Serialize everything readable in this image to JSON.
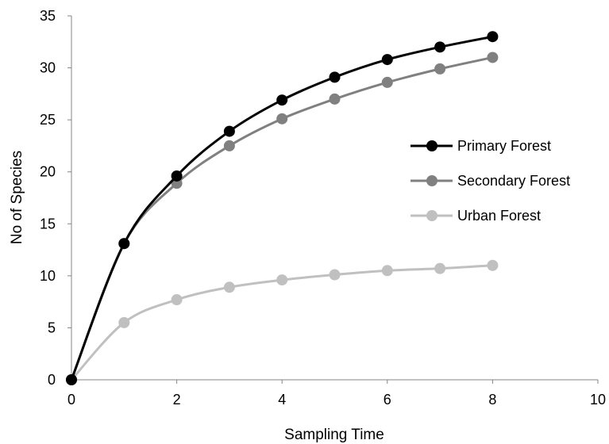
{
  "chart_data": {
    "type": "line",
    "title": "",
    "xlabel": "Sampling Time",
    "ylabel": "No of Species",
    "xlim": [
      0,
      10
    ],
    "ylim": [
      0,
      35
    ],
    "xticks": [
      0,
      2,
      4,
      6,
      8,
      10
    ],
    "yticks": [
      0,
      5,
      10,
      15,
      20,
      25,
      30,
      35
    ],
    "grid": false,
    "smooth": true,
    "legend_position": "right",
    "x": [
      0,
      1,
      2,
      3,
      4,
      5,
      6,
      7,
      8
    ],
    "series": [
      {
        "name": "Primary Forest",
        "color": "#000000",
        "values": [
          0,
          13.1,
          19.6,
          23.9,
          26.9,
          29.1,
          30.8,
          32.0,
          33.0
        ]
      },
      {
        "name": "Secondary Forest",
        "color": "#808080",
        "values": [
          0,
          13.1,
          18.9,
          22.5,
          25.1,
          27.0,
          28.6,
          29.9,
          31.0
        ]
      },
      {
        "name": "Urban Forest",
        "color": "#c0c0c0",
        "values": [
          0,
          5.5,
          7.7,
          8.9,
          9.6,
          10.1,
          10.5,
          10.7,
          11.0
        ]
      }
    ]
  }
}
